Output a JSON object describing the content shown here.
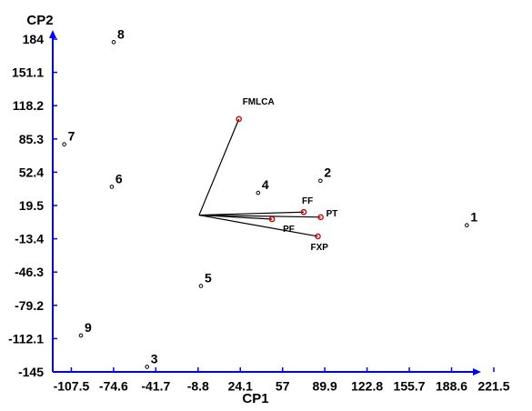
{
  "chart_data": {
    "type": "scatter",
    "subtype": "biplot",
    "xlabel": "CP1",
    "ylabel": "CP2",
    "xlim": [
      -117,
      221.5
    ],
    "ylim": [
      -145,
      184
    ],
    "x_ticks": [
      "-107.5",
      "-74.6",
      "-41.7",
      "-8.8",
      "24.1",
      "57",
      "89.9",
      "122.8",
      "155.7",
      "188.6",
      "221.5"
    ],
    "y_ticks": [
      "184",
      "151.1",
      "118.2",
      "85.3",
      "52.4",
      "19.5",
      "-13.4",
      "-46.3",
      "-79.2",
      "-112.1",
      "-145"
    ],
    "points": [
      {
        "label": "1",
        "x": 200.5,
        "y": 0
      },
      {
        "label": "2",
        "x": 86.5,
        "y": 44
      },
      {
        "label": "3",
        "x": -48.5,
        "y": -140
      },
      {
        "label": "4",
        "x": 38,
        "y": 32
      },
      {
        "label": "5",
        "x": -6.5,
        "y": -60
      },
      {
        "label": "6",
        "x": -76,
        "y": 38
      },
      {
        "label": "7",
        "x": -113,
        "y": 80
      },
      {
        "label": "8",
        "x": -74.5,
        "y": 181
      },
      {
        "label": "9",
        "x": -100,
        "y": -109
      }
    ],
    "vectors": [
      {
        "label": "FMLCA",
        "x": 23,
        "y": 105
      },
      {
        "label": "FF",
        "x": 73.5,
        "y": 13
      },
      {
        "label": "PT",
        "x": 86.7,
        "y": 8
      },
      {
        "label": "PF",
        "x": 48.8,
        "y": 6
      },
      {
        "label": "FXP",
        "x": 84.5,
        "y": -11
      }
    ],
    "vector_origin": [
      -8,
      10
    ],
    "colors": {
      "axis": "#0000ff",
      "vector_line": "#000000",
      "vector_marker": "#cc0000",
      "point_marker": "#000000"
    }
  }
}
